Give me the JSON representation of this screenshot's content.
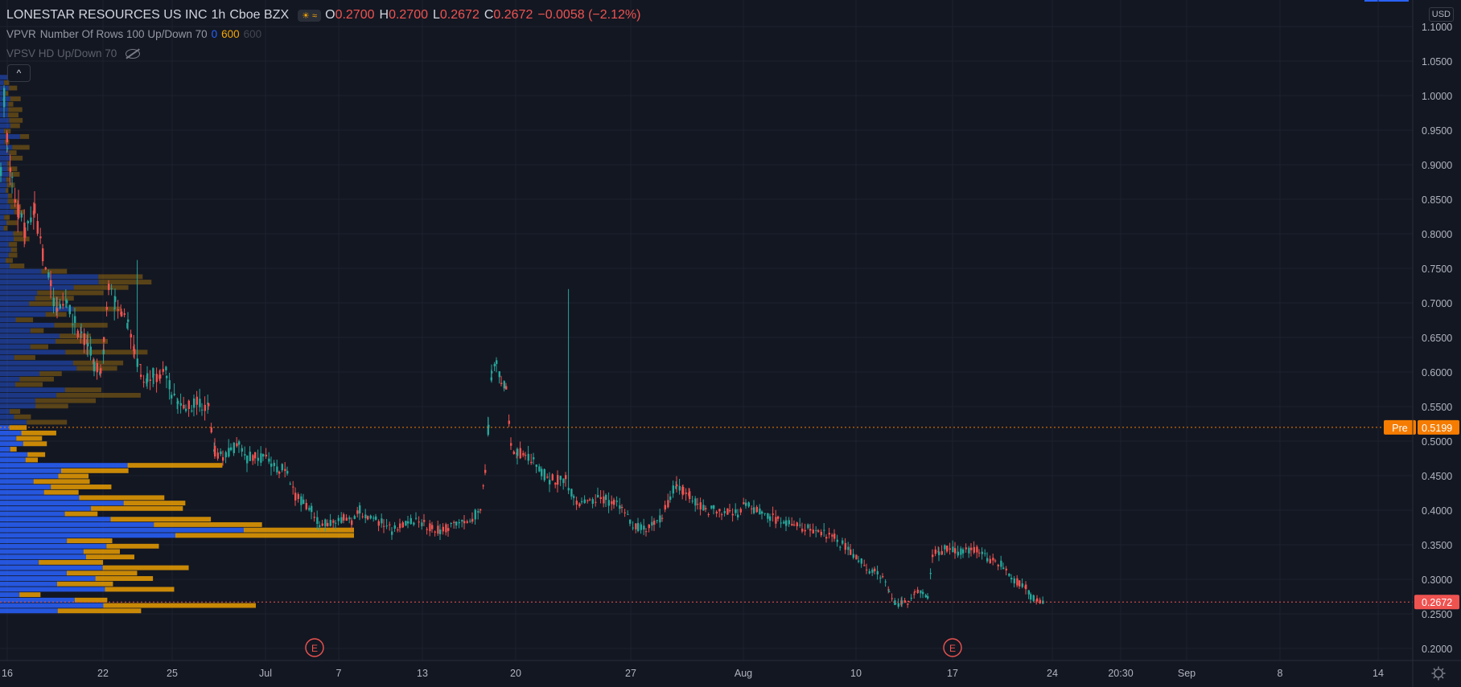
{
  "header": {
    "symbol": "LONESTAR RESOURCES US INC",
    "interval": "1h",
    "exchange": "Cboe BZX",
    "ohlc": {
      "o_label": "O",
      "o": "0.2700",
      "h_label": "H",
      "h": "0.2700",
      "l_label": "L",
      "l": "0.2672",
      "c_label": "C",
      "c": "0.2672",
      "change": "−0.0058 (−2.12%)"
    },
    "indicator1": {
      "name": "VPVR",
      "params": "Number Of Rows 100 Up/Down 70",
      "v0": "0",
      "v1": "600",
      "v2": "600"
    },
    "indicator2": {
      "name": "VPSV HD Up/Down 70"
    },
    "currency": "USD"
  },
  "colors": {
    "background": "#131722",
    "up": "#26a69a",
    "down": "#ef5350",
    "vp_up": "#2962ff",
    "vp_down": "#f7a600",
    "pre": "#f57c00"
  },
  "chart_data": {
    "type": "candlestick",
    "y_axis": {
      "min": 0.18,
      "max": 1.12,
      "ticks": [
        "1.1000",
        "1.0500",
        "1.0000",
        "0.9500",
        "0.9000",
        "0.8500",
        "0.8000",
        "0.7500",
        "0.7000",
        "0.6500",
        "0.6000",
        "0.5500",
        "0.5000",
        "0.4500",
        "0.4000",
        "0.3500",
        "0.3000",
        "0.2500",
        "0.2000"
      ]
    },
    "x_axis": {
      "ticks": [
        "16",
        "22",
        "25",
        "Jul",
        "7",
        "13",
        "20",
        "27",
        "Aug",
        "10",
        "17",
        "24",
        "20:30",
        "Sep",
        "8",
        "14"
      ]
    },
    "price_lines": [
      {
        "label": "Pre",
        "value": "0.5199",
        "color": "#f57c00"
      },
      {
        "label": "",
        "value": "0.2672",
        "color": "#ef5350"
      }
    ],
    "earnings_markers": [
      "E",
      "E"
    ],
    "path": [
      [
        0,
        0.9
      ],
      [
        4,
        1.0
      ],
      [
        8,
        0.94
      ],
      [
        14,
        0.88
      ],
      [
        22,
        0.83
      ],
      [
        30,
        0.8
      ],
      [
        42,
        0.83
      ],
      [
        52,
        0.77
      ],
      [
        62,
        0.72
      ],
      [
        70,
        0.69
      ],
      [
        82,
        0.7
      ],
      [
        92,
        0.67
      ],
      [
        100,
        0.65
      ],
      [
        108,
        0.64
      ],
      [
        116,
        0.61
      ],
      [
        124,
        0.6
      ],
      [
        128,
        0.64
      ],
      [
        134,
        0.72
      ],
      [
        142,
        0.7
      ],
      [
        150,
        0.69
      ],
      [
        158,
        0.67
      ],
      [
        166,
        0.63
      ],
      [
        174,
        0.6
      ],
      [
        182,
        0.59
      ],
      [
        190,
        0.6
      ],
      [
        198,
        0.59
      ],
      [
        206,
        0.6
      ],
      [
        212,
        0.57
      ],
      [
        220,
        0.555
      ],
      [
        230,
        0.55
      ],
      [
        240,
        0.555
      ],
      [
        250,
        0.555
      ],
      [
        258,
        0.55
      ],
      [
        266,
        0.485
      ],
      [
        276,
        0.48
      ],
      [
        286,
        0.485
      ],
      [
        296,
        0.5
      ],
      [
        306,
        0.475
      ],
      [
        316,
        0.48
      ],
      [
        326,
        0.475
      ],
      [
        336,
        0.47
      ],
      [
        346,
        0.46
      ],
      [
        356,
        0.46
      ],
      [
        366,
        0.42
      ],
      [
        376,
        0.41
      ],
      [
        386,
        0.4
      ],
      [
        396,
        0.38
      ],
      [
        406,
        0.38
      ],
      [
        416,
        0.385
      ],
      [
        426,
        0.39
      ],
      [
        436,
        0.38
      ],
      [
        446,
        0.4
      ],
      [
        456,
        0.39
      ],
      [
        466,
        0.385
      ],
      [
        476,
        0.38
      ],
      [
        486,
        0.37
      ],
      [
        496,
        0.38
      ],
      [
        506,
        0.385
      ],
      [
        516,
        0.385
      ],
      [
        526,
        0.38
      ],
      [
        536,
        0.375
      ],
      [
        546,
        0.37
      ],
      [
        556,
        0.375
      ],
      [
        566,
        0.38
      ],
      [
        576,
        0.38
      ],
      [
        586,
        0.39
      ],
      [
        596,
        0.4
      ],
      [
        602,
        0.46
      ],
      [
        606,
        0.52
      ],
      [
        610,
        0.6
      ],
      [
        616,
        0.61
      ],
      [
        622,
        0.59
      ],
      [
        628,
        0.58
      ],
      [
        634,
        0.49
      ],
      [
        642,
        0.485
      ],
      [
        652,
        0.48
      ],
      [
        662,
        0.47
      ],
      [
        672,
        0.455
      ],
      [
        682,
        0.445
      ],
      [
        692,
        0.445
      ],
      [
        702,
        0.445
      ],
      [
        712,
        0.415
      ],
      [
        722,
        0.41
      ],
      [
        732,
        0.41
      ],
      [
        742,
        0.415
      ],
      [
        752,
        0.415
      ],
      [
        762,
        0.41
      ],
      [
        772,
        0.4
      ],
      [
        782,
        0.385
      ],
      [
        792,
        0.375
      ],
      [
        802,
        0.375
      ],
      [
        812,
        0.38
      ],
      [
        822,
        0.39
      ],
      [
        832,
        0.42
      ],
      [
        840,
        0.44
      ],
      [
        848,
        0.43
      ],
      [
        856,
        0.42
      ],
      [
        866,
        0.41
      ],
      [
        876,
        0.4
      ],
      [
        886,
        0.4
      ],
      [
        896,
        0.4
      ],
      [
        906,
        0.395
      ],
      [
        916,
        0.395
      ],
      [
        926,
        0.41
      ],
      [
        936,
        0.4
      ],
      [
        946,
        0.395
      ],
      [
        956,
        0.39
      ],
      [
        966,
        0.385
      ],
      [
        976,
        0.38
      ],
      [
        986,
        0.38
      ],
      [
        996,
        0.375
      ],
      [
        1006,
        0.375
      ],
      [
        1016,
        0.37
      ],
      [
        1026,
        0.365
      ],
      [
        1036,
        0.36
      ],
      [
        1046,
        0.35
      ],
      [
        1056,
        0.34
      ],
      [
        1066,
        0.33
      ],
      [
        1076,
        0.315
      ],
      [
        1086,
        0.31
      ],
      [
        1096,
        0.3
      ],
      [
        1104,
        0.285
      ],
      [
        1112,
        0.265
      ],
      [
        1120,
        0.265
      ],
      [
        1128,
        0.265
      ],
      [
        1136,
        0.28
      ],
      [
        1146,
        0.28
      ],
      [
        1152,
        0.275
      ],
      [
        1158,
        0.335
      ],
      [
        1166,
        0.34
      ],
      [
        1176,
        0.345
      ],
      [
        1186,
        0.34
      ],
      [
        1196,
        0.34
      ],
      [
        1206,
        0.345
      ],
      [
        1216,
        0.34
      ],
      [
        1226,
        0.33
      ],
      [
        1236,
        0.325
      ],
      [
        1246,
        0.32
      ],
      [
        1256,
        0.3
      ],
      [
        1266,
        0.295
      ],
      [
        1274,
        0.29
      ],
      [
        1280,
        0.275
      ],
      [
        1288,
        0.27
      ],
      [
        1296,
        0.2672
      ]
    ]
  }
}
